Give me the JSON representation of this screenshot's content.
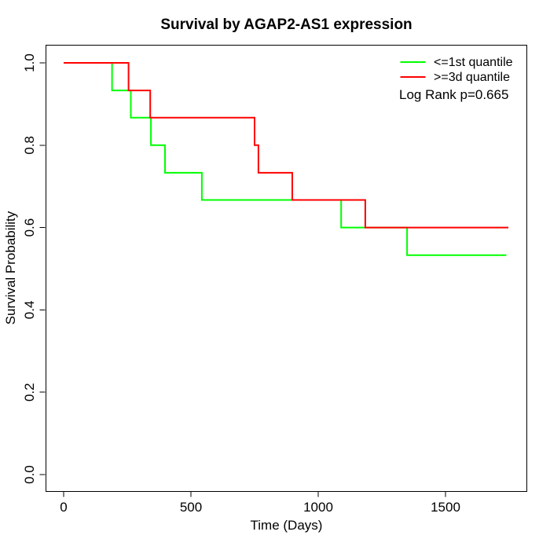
{
  "chart_data": {
    "type": "line",
    "subtype": "kaplan_meier_step",
    "title": "Survival by AGAP2-AS1 expression",
    "xlabel": "Time (Days)",
    "ylabel": "Survival Probability",
    "x_ticks": [
      0,
      500,
      1000,
      1500
    ],
    "y_ticks": [
      0,
      0.2,
      0.4,
      0.6,
      0.8,
      1
    ],
    "xlim": [
      0,
      1800
    ],
    "ylim": [
      0,
      1
    ],
    "grid": false,
    "legend_position": "top-right",
    "annotation": "Log Rank p=0.665",
    "log_rank_p": 0.665,
    "series": [
      {
        "key": "le-1st-quantile",
        "name": "<=1st quantile",
        "color": "#00ff00",
        "steps": [
          [
            0,
            1
          ],
          [
            190,
            0.933
          ],
          [
            264,
            0.867
          ],
          [
            343,
            0.8
          ],
          [
            398,
            0.733
          ],
          [
            543,
            0.667
          ],
          [
            1090,
            0.6
          ],
          [
            1349,
            0.533
          ],
          [
            1739,
            0.533
          ]
        ]
      },
      {
        "key": "ge-3d-quantile",
        "name": ">=3d quantile",
        "color": "#ff0000",
        "steps": [
          [
            0,
            1
          ],
          [
            255,
            0.933
          ],
          [
            340,
            0.867
          ],
          [
            750,
            0.8
          ],
          [
            765,
            0.733
          ],
          [
            898,
            0.667
          ],
          [
            1185,
            0.6
          ],
          [
            1747,
            0.6
          ]
        ]
      }
    ]
  }
}
